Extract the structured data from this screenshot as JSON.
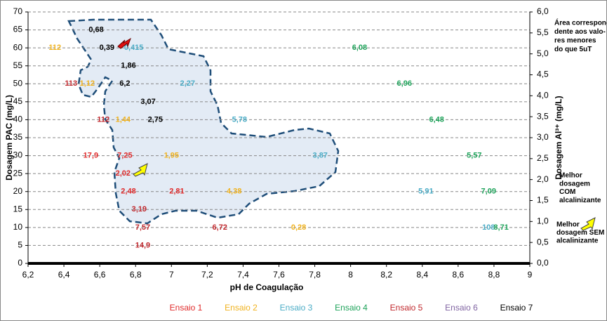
{
  "chart_data": {
    "type": "scatter",
    "x_label": "pH de Coagulação",
    "y_label": "Dosagem  PAC (mg/L)",
    "y2_label": "Dosagem Al³⁺ (mg/L)",
    "xlim": [
      6.2,
      9
    ],
    "ylim": [
      0,
      70
    ],
    "y2lim": [
      0,
      6
    ],
    "xticks": [
      {
        "value": 6.2,
        "label": "6,2"
      },
      {
        "value": 6.4,
        "label": "6,4"
      },
      {
        "value": 6.6,
        "label": "6,6"
      },
      {
        "value": 6.8,
        "label": "6,8"
      },
      7,
      {
        "value": 7.2,
        "label": "7,2"
      },
      {
        "value": 7.4,
        "label": "7,4"
      },
      {
        "value": 7.6,
        "label": "7,6"
      },
      {
        "value": 7.8,
        "label": "7,8"
      },
      8,
      {
        "value": 8.2,
        "label": "8,2"
      },
      {
        "value": 8.4,
        "label": "8,4"
      },
      {
        "value": 8.6,
        "label": "8,6"
      },
      {
        "value": 8.8,
        "label": "8,8"
      },
      9
    ],
    "yticks": [
      0,
      5,
      10,
      15,
      20,
      25,
      30,
      35,
      40,
      45,
      50,
      55,
      60,
      65,
      70
    ],
    "y2ticks": [
      {
        "value": 0,
        "label": "0,0"
      },
      {
        "value": 0.5,
        "label": "0,5"
      },
      {
        "value": 1,
        "label": "1,0"
      },
      {
        "value": 1.5,
        "label": "1,5"
      },
      {
        "value": 2,
        "label": "2,0"
      },
      {
        "value": 2.5,
        "label": "2,5"
      },
      {
        "value": 3,
        "label": "3,0"
      },
      {
        "value": 3.5,
        "label": "3,5"
      },
      {
        "value": 4,
        "label": "4,0"
      },
      {
        "value": 4.5,
        "label": "4,5"
      },
      {
        "value": 5,
        "label": "5,0"
      },
      {
        "value": 5.5,
        "label": "5,5"
      },
      {
        "value": 6,
        "label": "6,0"
      }
    ],
    "grid": true,
    "legend": "bottom",
    "series": [
      {
        "name": "Ensaio 1",
        "color": "#e02b2b",
        "x": [
          6.55,
          6.74,
          6.73,
          6.76,
          7.03
        ],
        "values": [
          30,
          30,
          25,
          20,
          20
        ],
        "labels": [
          "17,9",
          "7,25",
          "2,02",
          "2,48",
          "2,81"
        ]
      },
      {
        "name": "Ensaio 2",
        "color": "#f0b21e",
        "x": [
          6.35,
          6.53,
          6.73,
          7.0,
          7.35,
          7.71
        ],
        "values": [
          60,
          50,
          40,
          30,
          20,
          10
        ],
        "labels": [
          "112",
          "1,12",
          "1,44",
          "1,95",
          "4,38",
          "0,28"
        ]
      },
      {
        "name": "Ensaio 3",
        "color": "#4bacc6",
        "x": [
          6.79,
          7.09,
          7.38,
          7.83,
          8.42,
          8.77
        ],
        "values": [
          60,
          50,
          40,
          30,
          20,
          10
        ],
        "labels": [
          "0,415",
          "2,27",
          "5,78",
          "3,87",
          "5,91",
          "108"
        ]
      },
      {
        "name": "Ensaio 4",
        "color": "#1ea35a",
        "x": [
          8.05,
          8.3,
          8.48,
          8.69,
          8.77,
          8.84
        ],
        "values": [
          60,
          50,
          40,
          30,
          20,
          10
        ],
        "labels": [
          "6,08",
          "6,96",
          "6,48",
          "5,57",
          "7,09",
          "8,71"
        ]
      },
      {
        "name": "Ensaio 5",
        "color": "#c0282d",
        "x": [
          6.82,
          6.84,
          7.27,
          6.84,
          6.44,
          6.62
        ],
        "values": [
          15,
          10,
          10,
          5,
          50,
          40
        ],
        "labels": [
          "3,19",
          "7,57",
          "6,72",
          "14,9",
          "113",
          "112"
        ]
      },
      {
        "name": "Ensaio 6",
        "color": "#8064a2",
        "x": [],
        "values": [],
        "labels": []
      },
      {
        "name": "Ensaio 7",
        "color": "#000000",
        "x": [
          6.58,
          6.64,
          6.76,
          6.74,
          6.87,
          6.91
        ],
        "values": [
          65,
          60,
          55,
          50,
          45,
          40
        ],
        "labels": [
          "0,68",
          "0,39",
          "1,86",
          "6,2",
          "3,07",
          "2,75"
        ]
      }
    ],
    "annotations": [
      {
        "lines": [
          "Área correspon-",
          "dente aos valo-",
          "res menores",
          "do que 5uT"
        ]
      },
      {
        "lines": [
          "Melhor",
          "dosagem",
          "COM",
          "alcalinizante"
        ]
      },
      {
        "lines": [
          "Melhor",
          "dosagem SEM",
          "alcalinizante"
        ]
      }
    ]
  }
}
